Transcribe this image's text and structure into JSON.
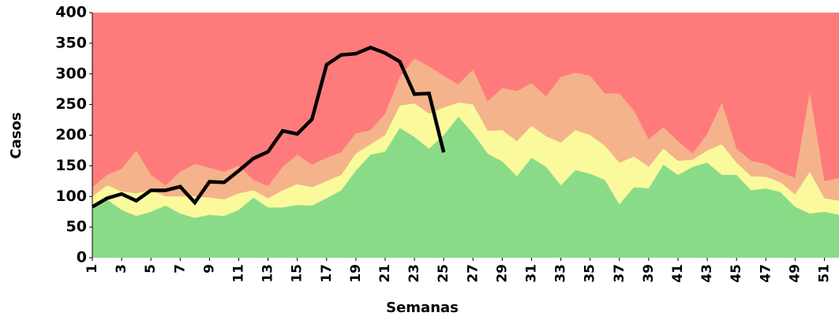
{
  "chart_data": {
    "type": "area",
    "x_label": "Semanas",
    "y_label": "Casos",
    "x": [
      1,
      2,
      3,
      4,
      5,
      6,
      7,
      8,
      9,
      10,
      11,
      12,
      13,
      14,
      15,
      16,
      17,
      18,
      19,
      20,
      21,
      22,
      23,
      24,
      25,
      26,
      27,
      28,
      29,
      30,
      31,
      32,
      33,
      34,
      35,
      36,
      37,
      38,
      39,
      40,
      41,
      42,
      43,
      44,
      45,
      46,
      47,
      48,
      49,
      50,
      51,
      52
    ],
    "xlim": [
      1,
      52
    ],
    "xticks": [
      1,
      3,
      5,
      7,
      9,
      11,
      13,
      15,
      17,
      19,
      21,
      23,
      25,
      27,
      29,
      31,
      33,
      35,
      37,
      39,
      41,
      43,
      45,
      47,
      49,
      51
    ],
    "ylim": [
      0,
      400
    ],
    "yticks": [
      0,
      50,
      100,
      150,
      200,
      250,
      300,
      350,
      400
    ],
    "plot_background": "#ff7b7b",
    "series": [
      {
        "color": "#f5b38b",
        "values": [
          115,
          135,
          145,
          175,
          135,
          118,
          140,
          153,
          147,
          140,
          150,
          127,
          117,
          148,
          168,
          152,
          163,
          172,
          203,
          208,
          235,
          295,
          325,
          312,
          297,
          283,
          307,
          255,
          277,
          272,
          285,
          263,
          295,
          302,
          297,
          268,
          268,
          240,
          193,
          213,
          190,
          170,
          202,
          253,
          178,
          158,
          153,
          140,
          130,
          270,
          125,
          130
        ]
      },
      {
        "color": "#fafa9c",
        "values": [
          100,
          118,
          108,
          105,
          110,
          100,
          100,
          100,
          98,
          95,
          105,
          110,
          97,
          110,
          120,
          115,
          125,
          135,
          170,
          185,
          200,
          248,
          252,
          235,
          245,
          253,
          250,
          207,
          208,
          190,
          215,
          198,
          188,
          208,
          200,
          183,
          155,
          165,
          148,
          178,
          158,
          160,
          175,
          185,
          155,
          133,
          132,
          123,
          103,
          140,
          97,
          93
        ]
      },
      {
        "color": "#8adb88",
        "values": [
          80,
          95,
          78,
          68,
          75,
          85,
          72,
          65,
          70,
          68,
          78,
          98,
          82,
          82,
          86,
          85,
          97,
          110,
          142,
          168,
          173,
          212,
          197,
          178,
          200,
          230,
          203,
          170,
          157,
          133,
          163,
          148,
          118,
          143,
          137,
          127,
          87,
          115,
          113,
          152,
          135,
          148,
          155,
          135,
          135,
          110,
          113,
          107,
          83,
          72,
          75,
          70
        ]
      },
      {
        "type": "line",
        "color": "#000000",
        "values": [
          83,
          97,
          104,
          93,
          110,
          110,
          116,
          90,
          124,
          123,
          142,
          162,
          173,
          207,
          202,
          226,
          315,
          331,
          333,
          343,
          334,
          320,
          267,
          268,
          172,
          null,
          null,
          null,
          null,
          null,
          null,
          null,
          null,
          null,
          null,
          null,
          null,
          null,
          null,
          null,
          null,
          null,
          null,
          null,
          null,
          null,
          null,
          null,
          null,
          null,
          null,
          null
        ]
      }
    ]
  }
}
